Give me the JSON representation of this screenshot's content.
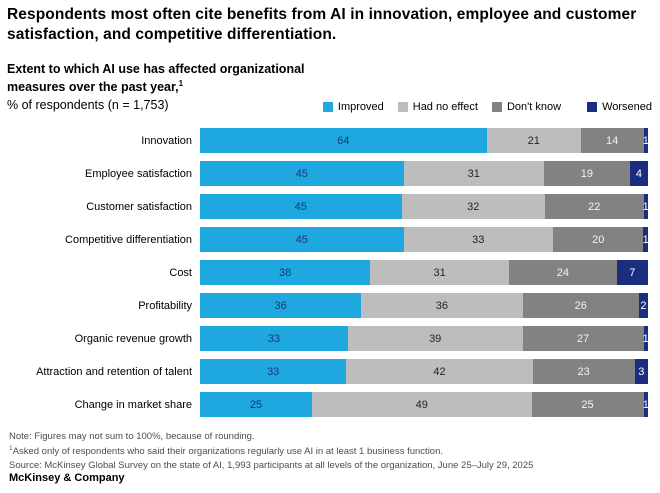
{
  "title": "Respondents most often cite benefits from AI in innovation, employee and customer satisfaction, and competitive differentiation.",
  "subtitle": {
    "bold": "Extent to which AI use has affected organizational measures over the past year,",
    "superscript": "1",
    "regular": "% of respondents (n = 1,753)"
  },
  "chart_data": {
    "type": "bar",
    "orientation": "horizontal",
    "stacked": true,
    "unit": "%",
    "xlim": [
      0,
      100
    ],
    "legend_position": "top-right",
    "categories": [
      "Innovation",
      "Employee satisfaction",
      "Customer satisfaction",
      "Competitive differentiation",
      "Cost",
      "Profitability",
      "Organic revenue growth",
      "Attraction and retention of talent",
      "Change in market share"
    ],
    "series": [
      {
        "name": "Improved",
        "color": "#1FA8E0",
        "label_color": "#14387C",
        "values": [
          64,
          45,
          45,
          45,
          38,
          36,
          33,
          33,
          25
        ]
      },
      {
        "name": "Had no effect",
        "color": "#BDBDBD",
        "label_color": "#262626",
        "values": [
          21,
          31,
          32,
          33,
          31,
          36,
          39,
          42,
          49
        ]
      },
      {
        "name": "Don't know",
        "color": "#828282",
        "label_color": "#F2F2F2",
        "values": [
          14,
          19,
          22,
          20,
          24,
          26,
          27,
          23,
          25
        ]
      },
      {
        "name": "Worsened",
        "color": "#1B2D7E",
        "label_color": "#FFFFFF",
        "values": [
          1,
          4,
          1,
          1,
          7,
          2,
          1,
          3,
          1
        ]
      }
    ]
  },
  "notes": {
    "note": "Note: Figures may not sum to 100%, because of rounding.",
    "footnote_superscript": "1",
    "footnote": "Asked only of respondents who said their organizations regularly use AI in at least 1 business function.",
    "source": "Source: McKinsey Global Survey on the state of AI, 1,993 participants at all levels of the organization, June 25–July 29, 2025"
  },
  "branding": "McKinsey & Company"
}
